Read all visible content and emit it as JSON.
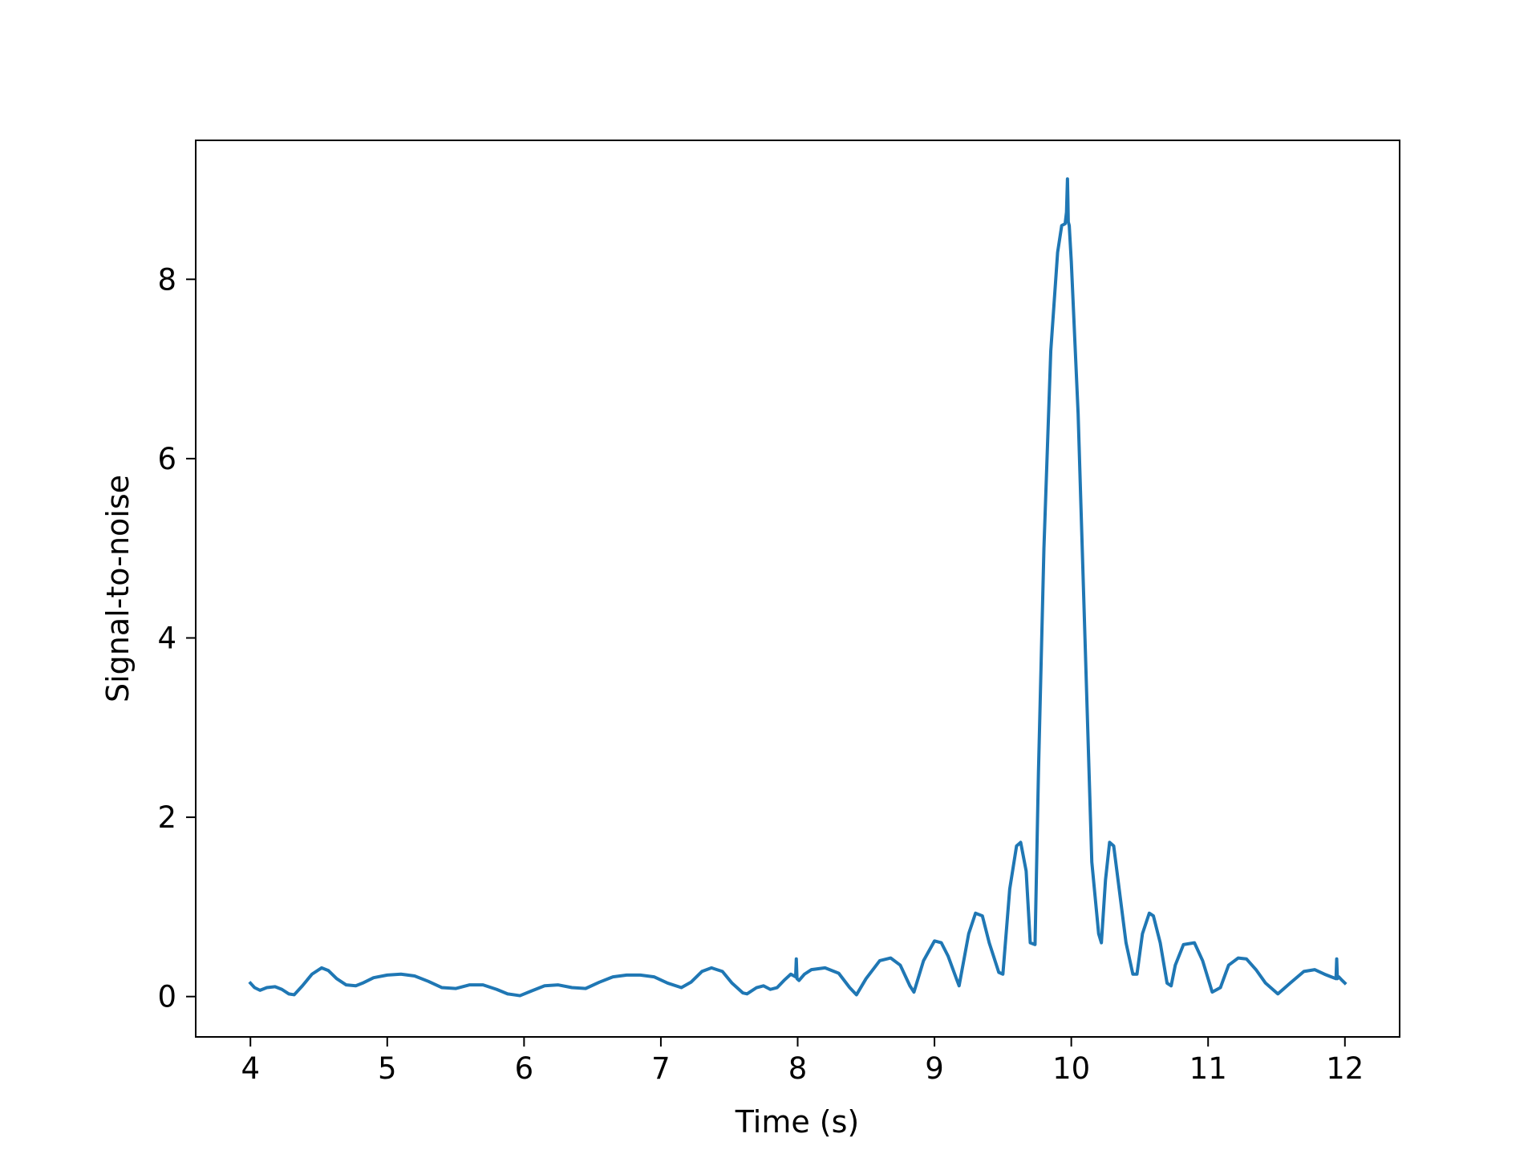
{
  "chart_data": {
    "type": "line",
    "title": "",
    "xlabel": "Time (s)",
    "ylabel": "Signal-to-noise",
    "xlim": [
      3.6,
      12.4
    ],
    "ylim": [
      -0.45,
      9.55
    ],
    "xticks": [
      4,
      5,
      6,
      7,
      8,
      9,
      10,
      11,
      12
    ],
    "xtick_labels": [
      "4",
      "5",
      "6",
      "7",
      "8",
      "9",
      "10",
      "11",
      "12"
    ],
    "yticks": [
      0,
      2,
      4,
      6,
      8
    ],
    "ytick_labels": [
      "0",
      "2",
      "4",
      "6",
      "8"
    ],
    "grid": false,
    "legend": "none",
    "line_color": "#1f77b4",
    "series": [
      {
        "x": [
          4.0,
          4.03,
          4.07,
          4.12,
          4.18,
          4.23,
          4.28,
          4.32,
          4.38,
          4.45,
          4.52,
          4.57,
          4.63,
          4.7,
          4.77,
          4.82,
          4.9,
          5.0,
          5.1,
          5.2,
          5.3,
          5.4,
          5.5,
          5.6,
          5.7,
          5.8,
          5.88,
          5.97,
          6.05,
          6.15,
          6.25,
          6.35,
          6.45,
          6.55,
          6.65,
          6.75,
          6.85,
          6.95,
          7.05,
          7.15,
          7.22,
          7.3,
          7.37,
          7.45,
          7.52,
          7.6,
          7.63,
          7.7,
          7.75,
          7.8,
          7.85,
          7.9,
          7.95,
          7.985,
          7.99,
          7.995,
          8.01,
          8.05,
          8.1,
          8.2,
          8.3,
          8.38,
          8.43,
          8.5,
          8.6,
          8.68,
          8.75,
          8.82,
          8.85,
          8.92,
          9.0,
          9.05,
          9.1,
          9.16,
          9.18,
          9.25,
          9.3,
          9.35,
          9.4,
          9.47,
          9.5,
          9.55,
          9.6,
          9.63,
          9.67,
          9.7,
          9.735,
          9.76,
          9.8,
          9.85,
          9.9,
          9.93,
          9.955,
          9.965,
          9.972,
          9.975,
          9.978,
          9.985,
          10.0,
          10.05,
          10.1,
          10.15,
          10.2,
          10.22,
          10.25,
          10.28,
          10.31,
          10.35,
          10.4,
          10.45,
          10.48,
          10.52,
          10.57,
          10.6,
          10.65,
          10.7,
          10.73,
          10.76,
          10.82,
          10.9,
          10.96,
          11.03,
          11.09,
          11.15,
          11.22,
          11.28,
          11.35,
          11.42,
          11.51,
          11.6,
          11.7,
          11.78,
          11.85,
          11.9,
          11.935,
          11.94,
          11.945,
          11.955,
          11.98,
          12.0
        ],
        "y": [
          0.15,
          0.1,
          0.07,
          0.1,
          0.11,
          0.08,
          0.03,
          0.02,
          0.12,
          0.25,
          0.32,
          0.29,
          0.2,
          0.13,
          0.12,
          0.15,
          0.21,
          0.24,
          0.25,
          0.23,
          0.17,
          0.1,
          0.09,
          0.13,
          0.13,
          0.08,
          0.03,
          0.01,
          0.06,
          0.12,
          0.13,
          0.1,
          0.09,
          0.16,
          0.22,
          0.24,
          0.24,
          0.22,
          0.15,
          0.1,
          0.16,
          0.28,
          0.32,
          0.28,
          0.15,
          0.04,
          0.03,
          0.1,
          0.12,
          0.08,
          0.1,
          0.18,
          0.25,
          0.22,
          0.42,
          0.2,
          0.18,
          0.25,
          0.3,
          0.32,
          0.26,
          0.1,
          0.02,
          0.2,
          0.4,
          0.43,
          0.35,
          0.12,
          0.05,
          0.4,
          0.62,
          0.6,
          0.45,
          0.2,
          0.12,
          0.7,
          0.93,
          0.9,
          0.6,
          0.27,
          0.25,
          1.2,
          1.68,
          1.72,
          1.4,
          0.6,
          0.58,
          2.5,
          5.0,
          7.2,
          8.3,
          8.6,
          8.62,
          8.75,
          9.12,
          8.9,
          8.64,
          8.6,
          8.2,
          6.5,
          4.0,
          1.5,
          0.7,
          0.6,
          1.3,
          1.72,
          1.68,
          1.2,
          0.6,
          0.25,
          0.25,
          0.7,
          0.93,
          0.9,
          0.6,
          0.15,
          0.12,
          0.35,
          0.58,
          0.6,
          0.4,
          0.05,
          0.1,
          0.35,
          0.43,
          0.42,
          0.3,
          0.15,
          0.03,
          0.15,
          0.28,
          0.3,
          0.25,
          0.22,
          0.2,
          0.42,
          0.2,
          0.22,
          0.18,
          0.15
        ]
      }
    ]
  }
}
